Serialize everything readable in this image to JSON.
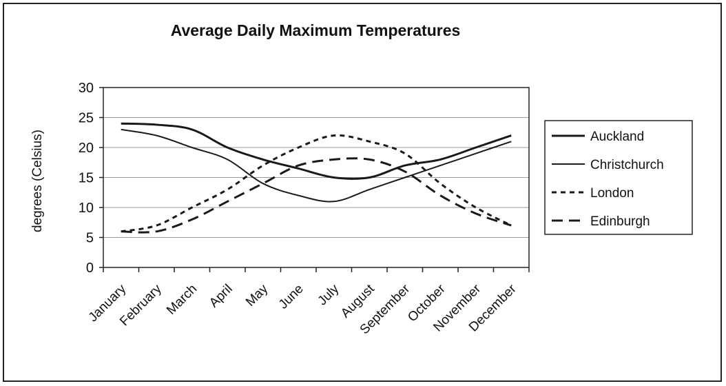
{
  "chart_data": {
    "type": "line",
    "title": "Average Daily Maximum Temperatures",
    "xlabel": "",
    "ylabel": "degrees (Celsius)",
    "ylim": [
      0,
      30
    ],
    "yticks": [
      0,
      5,
      10,
      15,
      20,
      25,
      30
    ],
    "grid": true,
    "legend_position": "right",
    "categories": [
      "January",
      "February",
      "March",
      "April",
      "May",
      "June",
      "July",
      "August",
      "September",
      "October",
      "November",
      "December"
    ],
    "series": [
      {
        "name": "Auckland",
        "style": "solid-thick",
        "values": [
          24,
          23.8,
          23,
          20,
          18,
          16.5,
          15,
          15,
          17,
          18,
          20,
          22
        ]
      },
      {
        "name": "Christchurch",
        "style": "solid-thin",
        "values": [
          23,
          22,
          20,
          18,
          14,
          12,
          11,
          13,
          15,
          17,
          19,
          21
        ]
      },
      {
        "name": "London",
        "style": "dotted",
        "values": [
          6,
          7,
          10,
          13,
          17,
          20,
          22,
          21,
          19,
          14,
          10,
          7
        ]
      },
      {
        "name": "Edinburgh",
        "style": "dashed",
        "values": [
          6,
          6,
          8,
          11,
          14,
          17,
          18,
          18,
          16,
          12,
          9,
          7
        ]
      }
    ]
  }
}
